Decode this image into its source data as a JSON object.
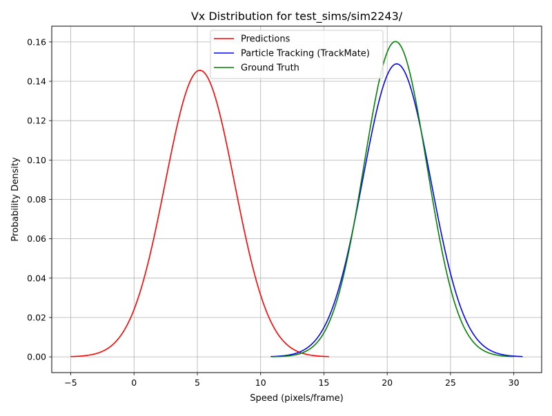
{
  "chart_data": {
    "type": "line",
    "title": "Vx Distribution for test_sims/sim2243/",
    "xlabel": "Speed (pixels/frame)",
    "ylabel": "Probability Density",
    "xlim": [
      -6.5,
      32.2
    ],
    "ylim": [
      -0.008,
      0.168
    ],
    "xticks": [
      -5,
      0,
      5,
      10,
      15,
      20,
      25,
      30
    ],
    "yticks": [
      0.0,
      0.02,
      0.04,
      0.06,
      0.08,
      0.1,
      0.12,
      0.14,
      0.16
    ],
    "xtick_labels": [
      "−5",
      "0",
      "5",
      "10",
      "15",
      "20",
      "25",
      "30"
    ],
    "ytick_labels": [
      "0.00",
      "0.02",
      "0.04",
      "0.06",
      "0.08",
      "0.10",
      "0.12",
      "0.14",
      "0.16"
    ],
    "grid": true,
    "legend_position": "top-center",
    "series": [
      {
        "name": "Predictions",
        "color": "#ff0000",
        "distribution": "normal",
        "mean": 5.2,
        "std": 2.74,
        "x_range": [
          -5.0,
          15.4
        ]
      },
      {
        "name": "Particle Tracking (TrackMate)",
        "color": "#0000ff",
        "distribution": "normal",
        "mean": 20.75,
        "std": 2.68,
        "x_range": [
          10.8,
          30.7
        ]
      },
      {
        "name": "Ground Truth",
        "color": "#008000",
        "distribution": "normal",
        "mean": 20.65,
        "std": 2.49,
        "x_range": [
          10.9,
          30.0
        ]
      }
    ]
  }
}
